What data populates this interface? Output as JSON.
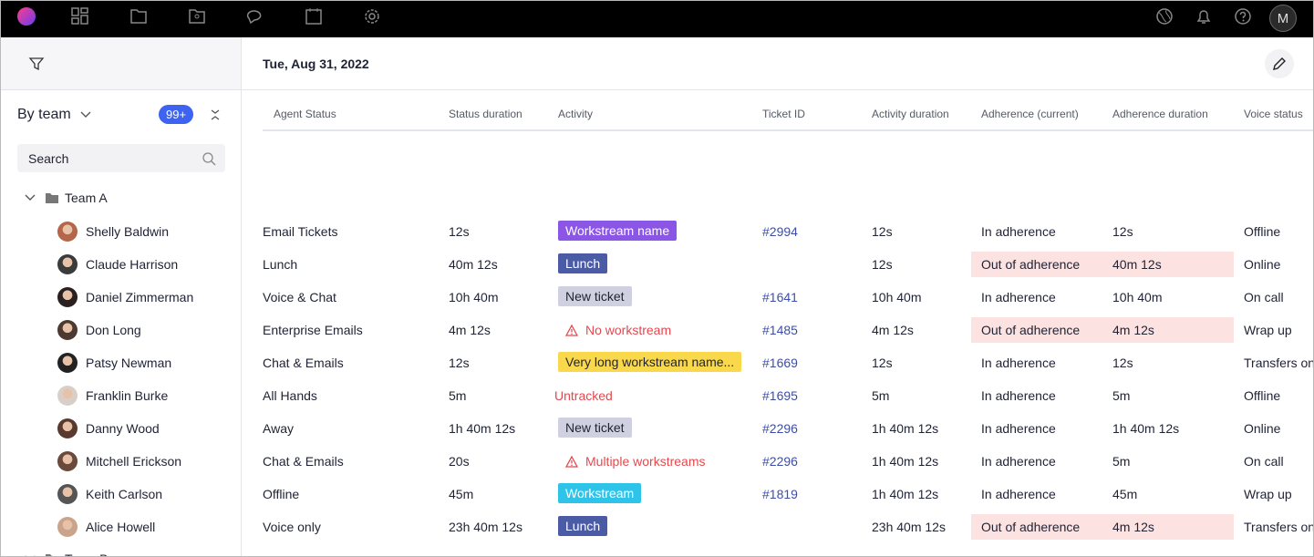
{
  "topbar": {
    "avatar": "M"
  },
  "sidebar": {
    "group_by": "By team",
    "badge": "99+",
    "search_placeholder": "Search",
    "teams": [
      {
        "name": "Team A",
        "agents": [
          "Shelly Baldwin",
          "Claude Harrison",
          "Daniel Zimmerman",
          "Don Long",
          "Patsy Newman",
          "Franklin Burke",
          "Danny Wood",
          "Mitchell Erickson",
          "Keith Carlson",
          "Alice Howell"
        ]
      },
      {
        "name": "Team B",
        "agents": []
      }
    ]
  },
  "header": {
    "date": "Tue, Aug 31, 2022"
  },
  "table": {
    "columns": [
      "Agent Status",
      "Status duration",
      "Activity",
      "Ticket ID",
      "Activity duration",
      "Adherence (current)",
      "Adherence duration",
      "Voice status"
    ],
    "rows": [
      {
        "status": "Email Tickets",
        "status_duration": "12s",
        "activity": {
          "label": "Workstream name",
          "kind": "badge",
          "color": "#8b55e6",
          "text_color": "#ffffff"
        },
        "ticket": "#2994",
        "activity_duration": "12s",
        "adherence": "In adherence",
        "adherence_alert": false,
        "adherence_duration": "12s",
        "voice": "Offline"
      },
      {
        "status": "Lunch",
        "status_duration": "40m 12s",
        "activity": {
          "label": "Lunch",
          "kind": "badge",
          "color": "#4b5ba6",
          "text_color": "#ffffff"
        },
        "ticket": null,
        "activity_duration": "12s",
        "adherence": "Out of adherence",
        "adherence_alert": true,
        "adherence_duration": "40m 12s",
        "voice": "Online"
      },
      {
        "status": "Voice & Chat",
        "status_duration": "10h 40m",
        "activity": {
          "label": "New ticket",
          "kind": "badge",
          "color": "#cfd1e0",
          "text_color": "#1f2233"
        },
        "ticket": "#1641",
        "activity_duration": "10h 40m",
        "adherence": "In adherence",
        "adherence_alert": false,
        "adherence_duration": "10h 40m",
        "voice": "On call"
      },
      {
        "status": "Enterprise Emails",
        "status_duration": "4m 12s",
        "activity": {
          "label": "No workstream",
          "kind": "warning",
          "color": "#e5484d"
        },
        "ticket": "#1485",
        "activity_duration": "4m 12s",
        "adherence": "Out of adherence",
        "adherence_alert": true,
        "adherence_duration": "4m 12s",
        "voice": "Wrap up"
      },
      {
        "status": "Chat & Emails",
        "status_duration": "12s",
        "activity": {
          "label": "Very long workstream name...",
          "kind": "badge",
          "color": "#f9d94b",
          "text_color": "#1f2233"
        },
        "ticket": "#1669",
        "activity_duration": "12s",
        "adherence": "In adherence",
        "adherence_alert": false,
        "adherence_duration": "12s",
        "voice": "Transfers only"
      },
      {
        "status": "All Hands",
        "status_duration": "5m",
        "activity": {
          "label": "Untracked",
          "kind": "text",
          "color": "#e5484d"
        },
        "ticket": "#1695",
        "activity_duration": "5m",
        "adherence": "In adherence",
        "adherence_alert": false,
        "adherence_duration": "5m",
        "voice": "Offline"
      },
      {
        "status": "Away",
        "status_duration": "1h 40m 12s",
        "activity": {
          "label": "New ticket",
          "kind": "badge",
          "color": "#cfd1e0",
          "text_color": "#1f2233"
        },
        "ticket": "#2296",
        "activity_duration": "1h 40m 12s",
        "adherence": "In adherence",
        "adherence_alert": false,
        "adherence_duration": "1h 40m 12s",
        "voice": "Online"
      },
      {
        "status": "Chat & Emails",
        "status_duration": "20s",
        "activity": {
          "label": "Multiple workstreams",
          "kind": "warning",
          "color": "#e5484d"
        },
        "ticket": "#2296",
        "activity_duration": "1h 40m 12s",
        "adherence": "In adherence",
        "adherence_alert": false,
        "adherence_duration": "5m",
        "voice": "On call"
      },
      {
        "status": "Offline",
        "status_duration": "45m",
        "activity": {
          "label": "Workstream",
          "kind": "badge",
          "color": "#2ec4ea",
          "text_color": "#ffffff"
        },
        "ticket": "#1819",
        "activity_duration": "1h 40m 12s",
        "adherence": "In adherence",
        "adherence_alert": false,
        "adherence_duration": "45m",
        "voice": "Wrap up"
      },
      {
        "status": "Voice only",
        "status_duration": "23h 40m 12s",
        "activity": {
          "label": "Lunch",
          "kind": "badge",
          "color": "#4b5ba6",
          "text_color": "#ffffff"
        },
        "ticket": null,
        "activity_duration": "23h 40m 12s",
        "adherence": "Out of adherence",
        "adherence_alert": true,
        "adherence_duration": "4m 12s",
        "voice": "Transfers only"
      }
    ]
  }
}
